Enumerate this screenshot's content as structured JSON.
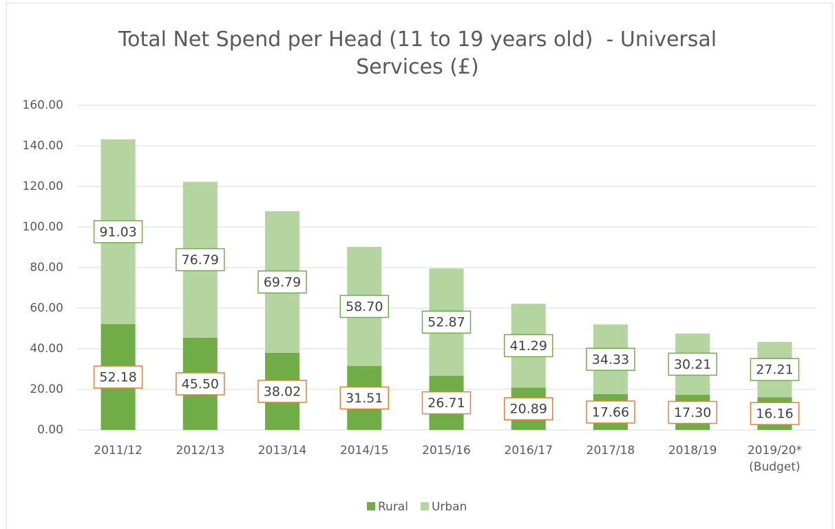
{
  "chart_data": {
    "type": "stacked_bar",
    "title": "Total Net Spend per Head (11 to 19 years old)  - Universal Services (£)",
    "categories": [
      "2011/12",
      "2012/13",
      "2013/14",
      "2014/15",
      "2015/16",
      "2016/17",
      "2017/18",
      "2018/19",
      "2019/20* (Budget)"
    ],
    "series": [
      {
        "name": "Rural",
        "color": "#70ad47",
        "label_border": "#ed7d31",
        "values": [
          52.18,
          45.5,
          38.02,
          31.51,
          26.71,
          20.89,
          17.66,
          17.3,
          16.16
        ],
        "value_labels": [
          "52.18",
          "45.50",
          "38.02",
          "31.51",
          "26.71",
          "20.89",
          "17.66",
          "17.30",
          "16.16"
        ]
      },
      {
        "name": "Urban",
        "color": "#b4d5a0",
        "label_border": "#70ad47",
        "values": [
          91.03,
          76.79,
          69.79,
          58.7,
          52.87,
          41.29,
          34.33,
          30.21,
          27.21
        ],
        "value_labels": [
          "91.03",
          "76.79",
          "69.79",
          "58.70",
          "52.87",
          "41.29",
          "34.33",
          "30.21",
          "27.21"
        ]
      }
    ],
    "ylim": [
      0,
      160
    ],
    "yticks": [
      {
        "value": 0,
        "label": "0.00"
      },
      {
        "value": 20,
        "label": "20.00"
      },
      {
        "value": 40,
        "label": "40.00"
      },
      {
        "value": 60,
        "label": "60.00"
      },
      {
        "value": 80,
        "label": "80.00"
      },
      {
        "value": 100,
        "label": "100.00"
      },
      {
        "value": 120,
        "label": "120.00"
      },
      {
        "value": 140,
        "label": "140.00"
      },
      {
        "value": 160,
        "label": "160.00"
      }
    ],
    "grid": true,
    "legend": "bottom"
  }
}
